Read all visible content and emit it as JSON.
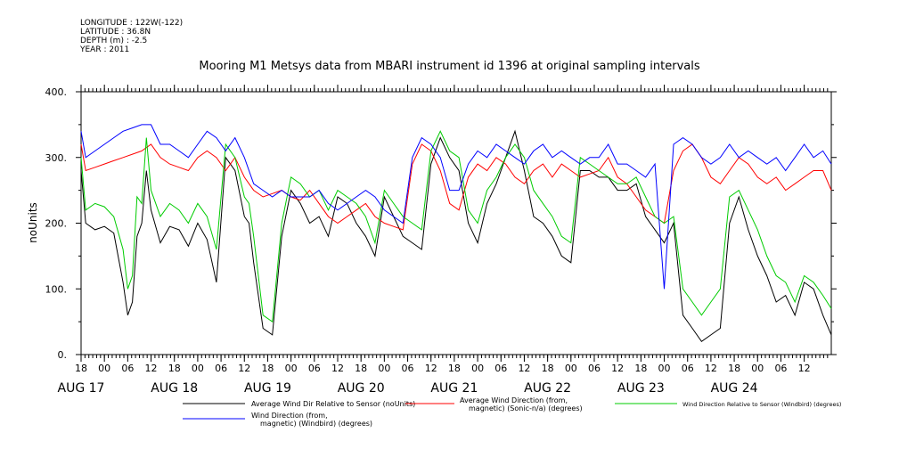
{
  "header": {
    "longitude": "LONGITUDE : 122W(-122)",
    "latitude": "LATITUDE : 36.8N",
    "depth": "DEPTH (m) : -2.5",
    "year": "YEAR : 2011"
  },
  "chart_data": {
    "type": "line",
    "title": "Mooring M1 Metsys data from MBARI instrument id 1396 at original sampling intervals",
    "ylabel": "noUnits",
    "xlabel": "",
    "ylim": [
      0,
      400
    ],
    "yticks": [
      "0.",
      "100.",
      "200.",
      "300.",
      "400."
    ],
    "xlim": [
      -0.25,
      7.79
    ],
    "hour_ticks": [
      {
        "x": -0.25,
        "label": "18"
      },
      {
        "x": 0.0,
        "label": "00"
      },
      {
        "x": 0.25,
        "label": "06"
      },
      {
        "x": 0.5,
        "label": "12"
      },
      {
        "x": 0.75,
        "label": "18"
      },
      {
        "x": 1.0,
        "label": "00"
      },
      {
        "x": 1.25,
        "label": "06"
      },
      {
        "x": 1.5,
        "label": "12"
      },
      {
        "x": 1.75,
        "label": "18"
      },
      {
        "x": 2.0,
        "label": "00"
      },
      {
        "x": 2.25,
        "label": "06"
      },
      {
        "x": 2.5,
        "label": "12"
      },
      {
        "x": 2.75,
        "label": "18"
      },
      {
        "x": 3.0,
        "label": "00"
      },
      {
        "x": 3.25,
        "label": "06"
      },
      {
        "x": 3.5,
        "label": "12"
      },
      {
        "x": 3.75,
        "label": "18"
      },
      {
        "x": 4.0,
        "label": "00"
      },
      {
        "x": 4.25,
        "label": "06"
      },
      {
        "x": 4.5,
        "label": "12"
      },
      {
        "x": 4.75,
        "label": "18"
      },
      {
        "x": 5.0,
        "label": "00"
      },
      {
        "x": 5.25,
        "label": "06"
      },
      {
        "x": 5.5,
        "label": "12"
      },
      {
        "x": 5.75,
        "label": "18"
      },
      {
        "x": 6.0,
        "label": "00"
      },
      {
        "x": 6.25,
        "label": "06"
      },
      {
        "x": 6.5,
        "label": "12"
      },
      {
        "x": 6.75,
        "label": "18"
      },
      {
        "x": 7.0,
        "label": "00"
      },
      {
        "x": 7.25,
        "label": "06"
      },
      {
        "x": 7.5,
        "label": "12"
      }
    ],
    "date_ticks": [
      {
        "x": -0.25,
        "label": "AUG 17"
      },
      {
        "x": 0.75,
        "label": "AUG 18"
      },
      {
        "x": 1.75,
        "label": "AUG 19"
      },
      {
        "x": 2.75,
        "label": "AUG 20"
      },
      {
        "x": 3.75,
        "label": "AUG 21"
      },
      {
        "x": 4.75,
        "label": "AUG 22"
      },
      {
        "x": 5.75,
        "label": "AUG 23"
      },
      {
        "x": 6.75,
        "label": "AUG 24"
      }
    ],
    "x_unit": "days since AUG 18 00:00 (2011)",
    "series": [
      {
        "name": "Average Wind Dir Relative to Sensor (noUnits)",
        "color": "#000000",
        "x": [
          -0.25,
          -0.2,
          -0.1,
          0.0,
          0.1,
          0.2,
          0.25,
          0.3,
          0.35,
          0.4,
          0.45,
          0.5,
          0.6,
          0.7,
          0.8,
          0.9,
          1.0,
          1.1,
          1.2,
          1.3,
          1.4,
          1.5,
          1.55,
          1.6,
          1.7,
          1.8,
          1.9,
          2.0,
          2.1,
          2.2,
          2.3,
          2.4,
          2.5,
          2.6,
          2.7,
          2.8,
          2.9,
          3.0,
          3.1,
          3.2,
          3.3,
          3.4,
          3.5,
          3.6,
          3.7,
          3.8,
          3.9,
          4.0,
          4.1,
          4.2,
          4.3,
          4.4,
          4.5,
          4.6,
          4.7,
          4.8,
          4.9,
          5.0,
          5.1,
          5.2,
          5.3,
          5.4,
          5.5,
          5.6,
          5.7,
          5.8,
          5.9,
          6.0,
          6.1,
          6.2,
          6.3,
          6.4,
          6.5,
          6.6,
          6.7,
          6.8,
          6.9,
          7.0,
          7.1,
          7.2,
          7.3,
          7.4,
          7.5,
          7.6,
          7.7,
          7.79
        ],
        "y": [
          280,
          200,
          190,
          195,
          185,
          110,
          60,
          80,
          180,
          200,
          280,
          220,
          170,
          195,
          190,
          165,
          200,
          175,
          110,
          300,
          280,
          210,
          200,
          140,
          40,
          30,
          180,
          250,
          230,
          200,
          210,
          180,
          240,
          230,
          200,
          180,
          150,
          240,
          210,
          180,
          170,
          160,
          290,
          330,
          300,
          280,
          200,
          170,
          230,
          260,
          300,
          340,
          280,
          210,
          200,
          180,
          150,
          140,
          280,
          280,
          270,
          270,
          250,
          250,
          260,
          210,
          190,
          170,
          200,
          60,
          40,
          20,
          30,
          40,
          200,
          240,
          190,
          150,
          120,
          80,
          90,
          60,
          110,
          100,
          60,
          30
        ]
      },
      {
        "name": "Average Wind Direction (from, magnetic) (Sonic-n/a) (degrees)",
        "color": "#ff0000",
        "x": [
          -0.25,
          -0.2,
          -0.1,
          0.0,
          0.1,
          0.2,
          0.3,
          0.4,
          0.5,
          0.6,
          0.7,
          0.8,
          0.9,
          1.0,
          1.1,
          1.2,
          1.3,
          1.4,
          1.5,
          1.6,
          1.7,
          1.8,
          1.9,
          2.0,
          2.1,
          2.2,
          2.3,
          2.4,
          2.5,
          2.6,
          2.7,
          2.8,
          2.9,
          3.0,
          3.1,
          3.2,
          3.3,
          3.4,
          3.5,
          3.6,
          3.7,
          3.8,
          3.9,
          4.0,
          4.1,
          4.2,
          4.3,
          4.4,
          4.5,
          4.6,
          4.7,
          4.8,
          4.9,
          5.0,
          5.1,
          5.2,
          5.3,
          5.4,
          5.5,
          5.6,
          5.7,
          5.8,
          5.9,
          6.0,
          6.1,
          6.2,
          6.3,
          6.4,
          6.5,
          6.6,
          6.7,
          6.8,
          6.9,
          7.0,
          7.1,
          7.2,
          7.3,
          7.4,
          7.5,
          7.6,
          7.7,
          7.79
        ],
        "y": [
          320,
          280,
          285,
          290,
          295,
          300,
          305,
          310,
          320,
          300,
          290,
          285,
          280,
          300,
          310,
          300,
          280,
          300,
          270,
          250,
          240,
          245,
          250,
          240,
          235,
          250,
          230,
          210,
          200,
          210,
          220,
          230,
          210,
          200,
          195,
          190,
          290,
          320,
          310,
          280,
          230,
          220,
          270,
          290,
          280,
          300,
          290,
          270,
          260,
          280,
          290,
          270,
          290,
          280,
          270,
          275,
          280,
          300,
          270,
          260,
          240,
          220,
          210,
          200,
          280,
          310,
          320,
          300,
          270,
          260,
          280,
          300,
          290,
          270,
          260,
          270,
          250,
          260,
          270,
          280,
          280,
          250
        ]
      },
      {
        "name": "Wind Direction Relative to Sensor (Windbird) (degrees)",
        "color": "#00cc00",
        "x": [
          -0.25,
          -0.2,
          -0.1,
          0.0,
          0.1,
          0.2,
          0.25,
          0.3,
          0.35,
          0.4,
          0.45,
          0.5,
          0.6,
          0.7,
          0.8,
          0.9,
          1.0,
          1.1,
          1.2,
          1.3,
          1.4,
          1.5,
          1.55,
          1.6,
          1.7,
          1.8,
          1.9,
          2.0,
          2.1,
          2.2,
          2.3,
          2.4,
          2.5,
          2.6,
          2.7,
          2.8,
          2.9,
          3.0,
          3.1,
          3.2,
          3.3,
          3.4,
          3.5,
          3.6,
          3.7,
          3.8,
          3.9,
          4.0,
          4.1,
          4.2,
          4.3,
          4.4,
          4.5,
          4.6,
          4.7,
          4.8,
          4.9,
          5.0,
          5.1,
          5.2,
          5.3,
          5.4,
          5.5,
          5.6,
          5.7,
          5.8,
          5.9,
          6.0,
          6.1,
          6.2,
          6.3,
          6.4,
          6.5,
          6.6,
          6.7,
          6.8,
          6.9,
          7.0,
          7.1,
          7.2,
          7.3,
          7.4,
          7.5,
          7.6,
          7.7,
          7.79
        ],
        "y": [
          300,
          220,
          230,
          225,
          210,
          160,
          100,
          120,
          240,
          230,
          330,
          250,
          210,
          230,
          220,
          200,
          230,
          210,
          160,
          320,
          300,
          240,
          230,
          180,
          60,
          50,
          200,
          270,
          260,
          240,
          250,
          220,
          250,
          240,
          230,
          210,
          170,
          250,
          230,
          210,
          200,
          190,
          310,
          340,
          310,
          300,
          220,
          200,
          250,
          270,
          300,
          320,
          300,
          250,
          230,
          210,
          180,
          170,
          300,
          290,
          280,
          270,
          260,
          260,
          270,
          240,
          210,
          200,
          210,
          100,
          80,
          60,
          80,
          100,
          240,
          250,
          220,
          190,
          150,
          120,
          110,
          80,
          120,
          110,
          90,
          70
        ]
      },
      {
        "name": "Wind Direction (from, magnetic) (Windbird) (degrees)",
        "color": "#0000ff",
        "x": [
          -0.25,
          -0.2,
          -0.1,
          0.0,
          0.1,
          0.2,
          0.3,
          0.4,
          0.5,
          0.6,
          0.7,
          0.8,
          0.9,
          1.0,
          1.1,
          1.2,
          1.3,
          1.4,
          1.5,
          1.6,
          1.7,
          1.8,
          1.9,
          2.0,
          2.1,
          2.2,
          2.3,
          2.4,
          2.5,
          2.6,
          2.7,
          2.8,
          2.9,
          3.0,
          3.1,
          3.2,
          3.3,
          3.4,
          3.5,
          3.6,
          3.7,
          3.8,
          3.9,
          4.0,
          4.1,
          4.2,
          4.3,
          4.4,
          4.5,
          4.6,
          4.7,
          4.8,
          4.9,
          5.0,
          5.1,
          5.2,
          5.3,
          5.4,
          5.5,
          5.6,
          5.7,
          5.8,
          5.9,
          6.0,
          6.1,
          6.2,
          6.3,
          6.4,
          6.5,
          6.6,
          6.7,
          6.8,
          6.9,
          7.0,
          7.1,
          7.2,
          7.3,
          7.4,
          7.5,
          7.6,
          7.7,
          7.79
        ],
        "y": [
          340,
          300,
          310,
          320,
          330,
          340,
          345,
          350,
          350,
          320,
          320,
          310,
          300,
          320,
          340,
          330,
          310,
          330,
          300,
          260,
          250,
          240,
          250,
          240,
          240,
          240,
          250,
          230,
          220,
          230,
          240,
          250,
          240,
          220,
          210,
          200,
          300,
          330,
          320,
          300,
          250,
          250,
          290,
          310,
          300,
          320,
          310,
          300,
          290,
          310,
          320,
          300,
          310,
          300,
          290,
          300,
          300,
          320,
          290,
          290,
          280,
          270,
          290,
          100,
          320,
          330,
          320,
          300,
          290,
          300,
          320,
          300,
          310,
          300,
          290,
          300,
          280,
          300,
          320,
          300,
          310,
          290
        ]
      }
    ],
    "legend": {
      "placement": "below plot",
      "items": [
        {
          "line1": "Average Wind Dir Relative to Sensor (noUnits)",
          "line2": "",
          "color": "#000000"
        },
        {
          "line1": "Average Wind Direction (from,",
          "line2": "magnetic) (Sonic-n/a) (degrees)",
          "color": "#ff0000"
        },
        {
          "line1": "Wind Direction Relative to Sensor (Windbird) (degrees)",
          "line2": "",
          "color": "#00cc00"
        },
        {
          "line1": "Wind Direction (from,",
          "line2": "magnetic) (Windbird) (degrees)",
          "color": "#0000ff"
        }
      ]
    },
    "grid": false
  }
}
